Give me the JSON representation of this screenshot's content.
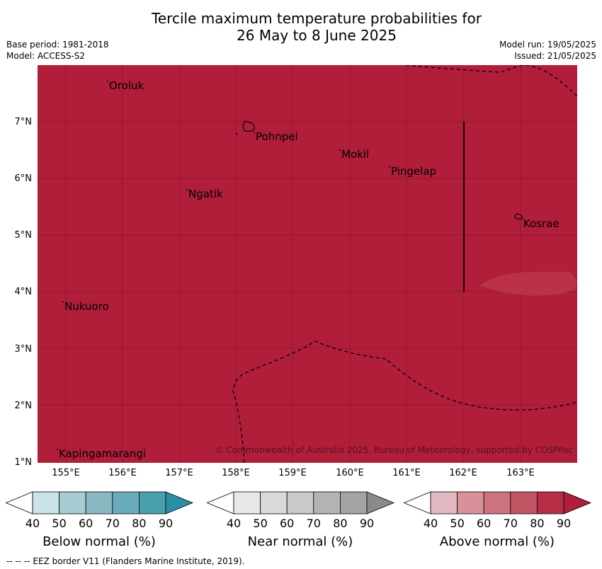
{
  "header": {
    "title_line1": "Tercile maximum temperature probabilities for",
    "title_line2": "26 May to 8 June 2025",
    "base_period": "Base period: 1981-2018",
    "model": "Model: ACCESS-S2",
    "model_run": "Model run: 19/05/2025",
    "issued": "Issued: 21/05/2025"
  },
  "map": {
    "background_color": "#b01e3a",
    "grid": true,
    "lat_labels": [
      "7°N",
      "6°N",
      "5°N",
      "4°N",
      "3°N",
      "2°N",
      "1°N"
    ],
    "lon_labels": [
      "155°E",
      "156°E",
      "157°E",
      "158°E",
      "159°E",
      "160°E",
      "161°E",
      "162°E",
      "163°E"
    ],
    "places": [
      {
        "name": "Oroluk"
      },
      {
        "name": "Pohnpei"
      },
      {
        "name": "Mokil"
      },
      {
        "name": "Pingelap"
      },
      {
        "name": "Ngatik"
      },
      {
        "name": "Kosrae"
      },
      {
        "name": "Nukuoro"
      },
      {
        "name": "Kapingamarangi"
      }
    ],
    "copyright": "© Commonwealth of Australia 2025, Bureau of Meteorology, supported by COSPPac"
  },
  "legend": {
    "ticks": [
      "40",
      "50",
      "60",
      "70",
      "80",
      "90"
    ],
    "bars": [
      {
        "label": "Below normal (%)",
        "colors": [
          "#ffffff",
          "#cae3e8",
          "#a7cbd2",
          "#8ab8c2",
          "#6aabbb",
          "#4a9faf",
          "#2a8fa3"
        ]
      },
      {
        "label": "Near normal (%)",
        "colors": [
          "#ffffff",
          "#e8e8e8",
          "#d9d9d9",
          "#c9c9c9",
          "#b3b3b3",
          "#a3a3a3",
          "#8a8a8a"
        ]
      },
      {
        "label": "Above normal (%)",
        "colors": [
          "#ffffff",
          "#e2b8c0",
          "#d99199",
          "#cd737e",
          "#c25563",
          "#b52e45",
          "#b01e3a"
        ]
      }
    ]
  },
  "footnote": "--  --  -- EEZ border V11 (Flanders Marine Institute, 2019)."
}
